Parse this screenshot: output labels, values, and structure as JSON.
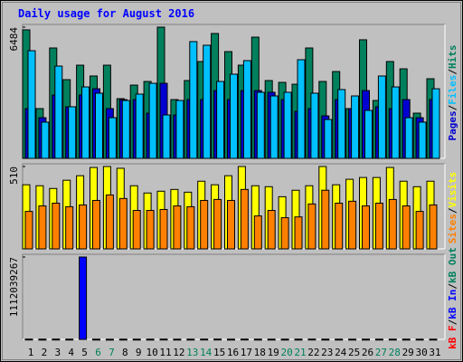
{
  "chart_data": [
    {
      "type": "bar",
      "title": "Daily usage for August 2016",
      "ylim": [
        0,
        6484
      ],
      "yticks": [
        6484
      ],
      "legend_separator": "/",
      "series": [
        {
          "name": "Hits",
          "color": "#00805c",
          "values": [
            6350,
            2460,
            5455,
            3890,
            4605,
            4070,
            4605,
            2950,
            3620,
            3800,
            6484,
            2905,
            3845,
            4785,
            6170,
            5275,
            4605,
            5990,
            3845,
            3755,
            3665,
            5455,
            3800,
            4290,
            2460,
            5860,
            2860,
            4785,
            4425,
            2235,
            3935
          ]
        },
        {
          "name": "Files",
          "color": "#00c0ff",
          "values": [
            5320,
            1790,
            4560,
            2550,
            3530,
            3220,
            2010,
            2860,
            3175,
            3710,
            2145,
            2860,
            5770,
            5590,
            3800,
            4160,
            4830,
            3265,
            3085,
            3265,
            4875,
            3220,
            1920,
            3400,
            3085,
            2370,
            4070,
            3530,
            2010,
            1790,
            3440
          ]
        },
        {
          "name": "Pages",
          "color": "#0000d0",
          "values": [
            2460,
            2010,
            3130,
            2550,
            3130,
            3440,
            2460,
            2905,
            2905,
            2235,
            3710,
            2145,
            2905,
            2905,
            3350,
            2905,
            3350,
            3350,
            3265,
            2905,
            2325,
            2460,
            2100,
            2905,
            2460,
            3350,
            2550,
            2460,
            2905,
            2010,
            2905
          ]
        }
      ]
    },
    {
      "type": "bar",
      "ylim": [
        0,
        510
      ],
      "yticks": [
        510
      ],
      "legend_separator": "/",
      "series": [
        {
          "name": "Visits",
          "color": "#ffff00",
          "values": [
            397,
            391,
            374,
            425,
            453,
            504,
            510,
            499,
            391,
            346,
            357,
            368,
            351,
            419,
            397,
            453,
            510,
            391,
            385,
            323,
            363,
            391,
            510,
            397,
            431,
            442,
            442,
            504,
            419,
            385,
            419
          ]
        },
        {
          "name": "Sites",
          "color": "#ff8000",
          "values": [
            232,
            266,
            283,
            261,
            272,
            300,
            334,
            312,
            238,
            238,
            244,
            266,
            261,
            300,
            306,
            300,
            368,
            204,
            238,
            193,
            198,
            278,
            363,
            283,
            295,
            266,
            283,
            306,
            266,
            232,
            272
          ]
        }
      ]
    },
    {
      "type": "bar",
      "ylim": [
        0,
        1112039267
      ],
      "yticks": [
        1112039267
      ],
      "legend_separator": "/",
      "categories": [
        "1",
        "2",
        "3",
        "4",
        "5",
        "6",
        "7",
        "8",
        "9",
        "10",
        "11",
        "12",
        "13",
        "14",
        "15",
        "16",
        "17",
        "18",
        "19",
        "20",
        "21",
        "22",
        "23",
        "24",
        "25",
        "26",
        "27",
        "28",
        "29",
        "30",
        "31"
      ],
      "category_colors": [
        "#000000",
        "#000000",
        "#000000",
        "#000000",
        "#000000",
        "#00805c",
        "#00805c",
        "#000000",
        "#000000",
        "#000000",
        "#000000",
        "#000000",
        "#00805c",
        "#00805c",
        "#000000",
        "#000000",
        "#000000",
        "#000000",
        "#000000",
        "#00805c",
        "#00805c",
        "#000000",
        "#000000",
        "#000000",
        "#000000",
        "#000000",
        "#00805c",
        "#00805c",
        "#000000",
        "#000000",
        "#000000"
      ],
      "series": [
        {
          "name": "kB Out",
          "color": "#00805c",
          "values": [
            null,
            null,
            null,
            null,
            null,
            null,
            null,
            null,
            null,
            null,
            null,
            null,
            null,
            null,
            null,
            null,
            null,
            null,
            null,
            null,
            null,
            null,
            null,
            null,
            null,
            null,
            null,
            null,
            null,
            null,
            null
          ]
        },
        {
          "name": "kB In",
          "color": "#0000ff",
          "values": [
            4000000,
            3000000,
            4000000,
            3000000,
            1112039267,
            3000000,
            2000000,
            3000000,
            3000000,
            3000000,
            4000000,
            3000000,
            3000000,
            4000000,
            4000000,
            3000000,
            4000000,
            3000000,
            3000000,
            3000000,
            3000000,
            4000000,
            3000000,
            3000000,
            3000000,
            3000000,
            3000000,
            3000000,
            3000000,
            3000000,
            3000000
          ]
        },
        {
          "name": "kB F",
          "color": "#ff0000",
          "values": [
            null,
            null,
            null,
            null,
            null,
            null,
            null,
            null,
            null,
            null,
            null,
            null,
            null,
            null,
            null,
            null,
            null,
            null,
            null,
            null,
            null,
            null,
            null,
            null,
            null,
            null,
            null,
            null,
            null,
            null,
            null
          ]
        }
      ]
    }
  ]
}
